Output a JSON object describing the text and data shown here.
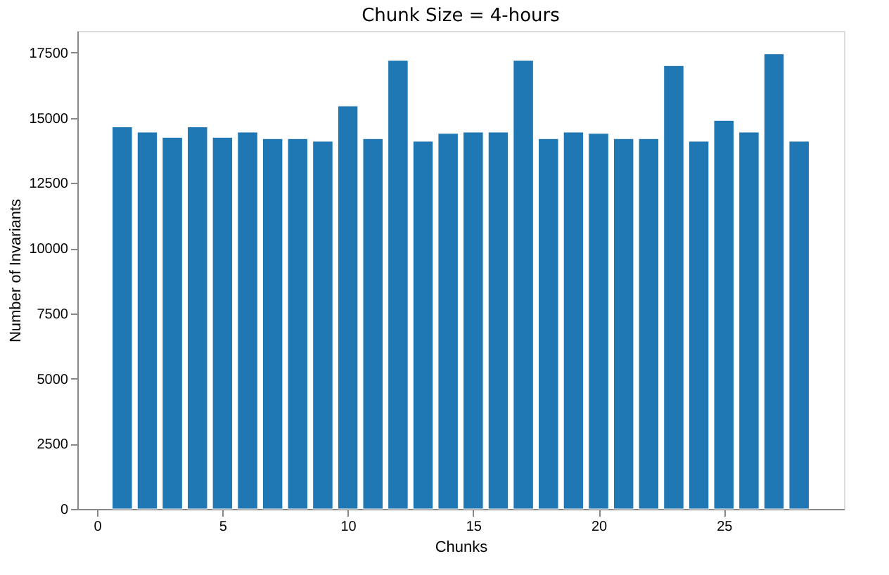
{
  "chart_data": {
    "type": "bar",
    "title": "Chunk Size = 4-hours",
    "xlabel": "Chunks",
    "ylabel": "Number of Invariants",
    "x": [
      1,
      2,
      3,
      4,
      5,
      6,
      7,
      8,
      9,
      10,
      11,
      12,
      13,
      14,
      15,
      16,
      17,
      18,
      19,
      20,
      21,
      22,
      23,
      24,
      25,
      26,
      27,
      28
    ],
    "values": [
      14650,
      14450,
      14250,
      14650,
      14250,
      14450,
      14200,
      14200,
      14100,
      15450,
      14200,
      17200,
      14100,
      14400,
      14450,
      14450,
      17200,
      14200,
      14450,
      14400,
      14200,
      14200,
      17000,
      14100,
      14900,
      14450,
      17450,
      14100
    ],
    "color": "#1f77b4",
    "xlim": [
      -0.79,
      29.79
    ],
    "xticks": [
      0,
      5,
      10,
      15,
      20,
      25
    ],
    "ylim": [
      0,
      18330
    ],
    "yticks": [
      0,
      2500,
      5000,
      7500,
      10000,
      12500,
      15000,
      17500
    ],
    "grid": false
  }
}
